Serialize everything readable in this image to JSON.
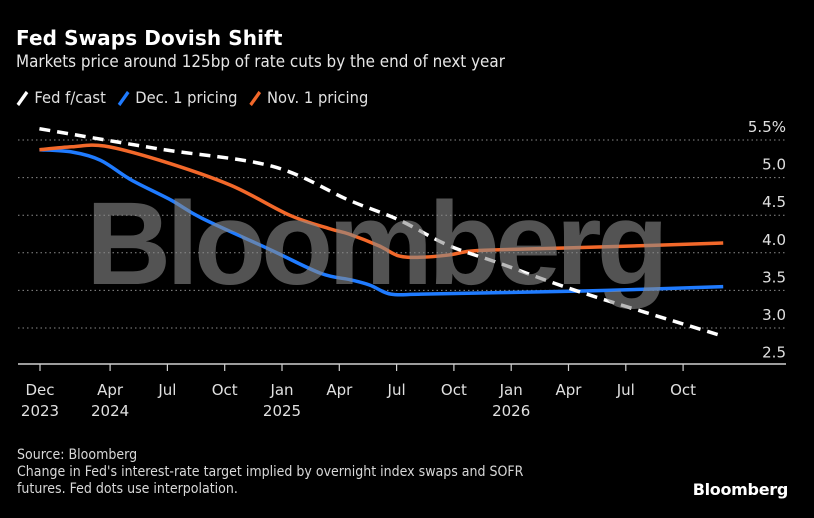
{
  "header": {
    "title": "Fed Swaps Dovish Shift",
    "subtitle": "Markets price around 125bp of rate cuts by the end of next year"
  },
  "legend": [
    {
      "label": "Fed f/cast",
      "color": "#ffffff",
      "dashed": true
    },
    {
      "label": "Dec. 1 pricing",
      "color": "#1f7bff",
      "dashed": false
    },
    {
      "label": "Nov. 1 pricing",
      "color": "#f2682a",
      "dashed": false
    }
  ],
  "watermark": "Bloomberg",
  "footer": {
    "source": "Source: Bloomberg",
    "note_line1": "Change in Fed's interest-rate target implied by overnight index swaps and SOFR",
    "note_line2": "futures. Fed dots use interpolation.",
    "logo": "Bloomberg"
  },
  "chart_data": {
    "type": "line",
    "title": "Fed Swaps Dovish Shift",
    "subtitle": "Markets price around 125bp of rate cuts by the end of next year",
    "xlabel": "",
    "ylabel": "%",
    "x_unit": "months since Dec 2023",
    "xlim": [
      0,
      37.5
    ],
    "ylim": [
      2.5,
      5.5
    ],
    "y_ticks": [
      {
        "value": 5.5,
        "label": "5.5%"
      },
      {
        "value": 5.0,
        "label": "5.0"
      },
      {
        "value": 4.5,
        "label": "4.5"
      },
      {
        "value": 4.0,
        "label": "4.0"
      },
      {
        "value": 3.5,
        "label": "3.5"
      },
      {
        "value": 3.0,
        "label": "3.0"
      },
      {
        "value": 2.5,
        "label": "2.5"
      }
    ],
    "x_ticks": [
      {
        "month": 0.3,
        "label": "Dec",
        "year": "2023"
      },
      {
        "month": 4,
        "label": "Apr",
        "year": "2024"
      },
      {
        "month": 7,
        "label": "Jul",
        "year": ""
      },
      {
        "month": 10,
        "label": "Oct",
        "year": ""
      },
      {
        "month": 13,
        "label": "Jan",
        "year": "2025"
      },
      {
        "month": 16,
        "label": "Apr",
        "year": ""
      },
      {
        "month": 19,
        "label": "Jul",
        "year": ""
      },
      {
        "month": 22,
        "label": "Oct",
        "year": ""
      },
      {
        "month": 25,
        "label": "Jan",
        "year": "2026"
      },
      {
        "month": 28,
        "label": "Apr",
        "year": ""
      },
      {
        "month": 31,
        "label": "Jul",
        "year": ""
      },
      {
        "month": 34,
        "label": "Oct",
        "year": ""
      }
    ],
    "grid": true,
    "legend_position": "top-left",
    "series": [
      {
        "name": "Fed f/cast",
        "color": "#ffffff",
        "style": "dashed",
        "x": [
          0.3,
          6.6,
          12.5,
          16.5,
          19.1,
          21.7,
          24.4,
          28.6,
          36.1
        ],
        "y": [
          5.65,
          5.38,
          5.15,
          4.7,
          4.44,
          4.1,
          3.86,
          3.48,
          2.89
        ]
      },
      {
        "name": "Dec. 1 pricing",
        "color": "#1f7bff",
        "style": "solid",
        "x": [
          0.3,
          2.0,
          3.5,
          5.1,
          7.2,
          8.8,
          12.4,
          15.0,
          16.6,
          17.6,
          18.7,
          20.3,
          24.4,
          30.0,
          36.1
        ],
        "y": [
          5.37,
          5.34,
          5.23,
          4.97,
          4.7,
          4.46,
          4.04,
          3.73,
          3.64,
          3.57,
          3.45,
          3.45,
          3.47,
          3.5,
          3.55
        ]
      },
      {
        "name": "Nov. 1 pricing",
        "color": "#f2682a",
        "style": "solid",
        "x": [
          0.3,
          2.0,
          3.7,
          6.6,
          10.3,
          13.4,
          15.5,
          16.5,
          18.1,
          19.1,
          20.2,
          21.7,
          22.8,
          24.4,
          30.0,
          36.1
        ],
        "y": [
          5.37,
          5.41,
          5.42,
          5.23,
          4.9,
          4.5,
          4.32,
          4.25,
          4.09,
          3.96,
          3.94,
          3.97,
          4.02,
          4.04,
          4.08,
          4.13
        ]
      }
    ]
  }
}
